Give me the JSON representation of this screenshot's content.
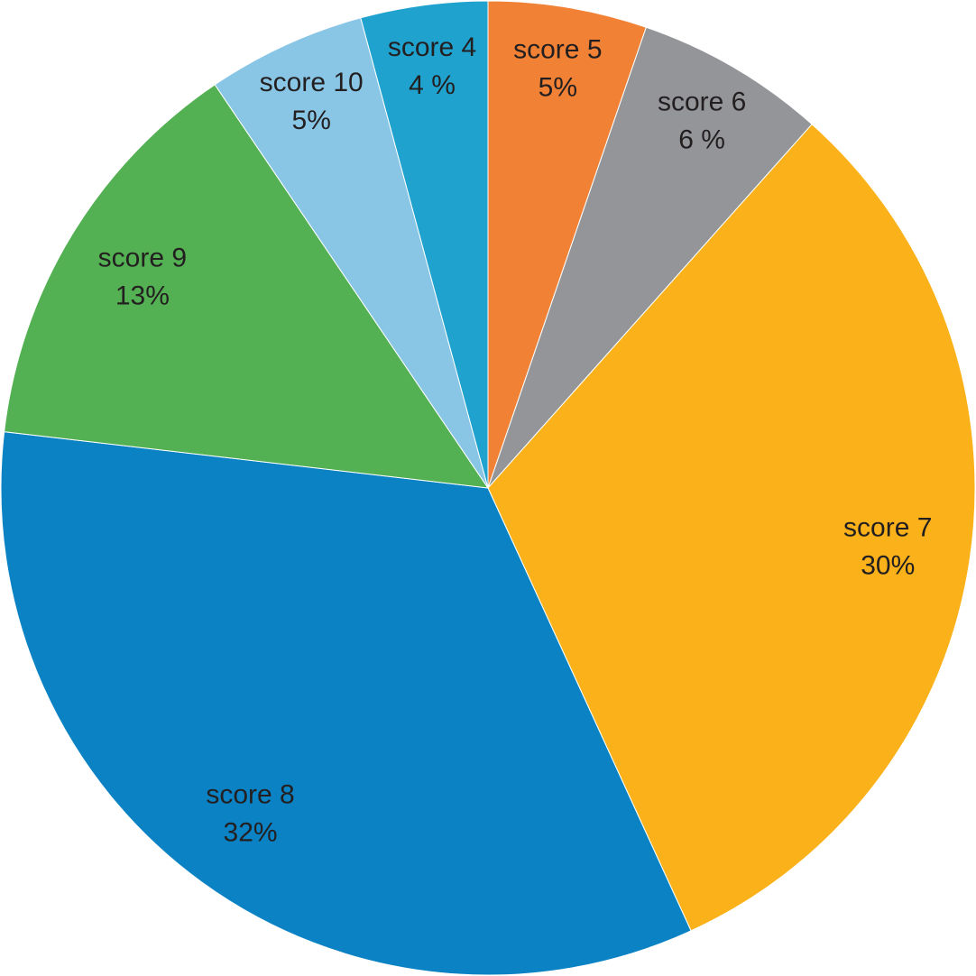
{
  "chart_data": {
    "type": "pie",
    "categories": [
      "score 5",
      "score 6",
      "score 7",
      "score 8",
      "score 9",
      "score 10",
      "score 4"
    ],
    "values": [
      5,
      6,
      30,
      32,
      13,
      5,
      4
    ],
    "value_labels": [
      "5%",
      "6 %",
      "30%",
      "32%",
      "13%",
      "5%",
      "4 %"
    ],
    "colors": [
      "#f08135",
      "#939598",
      "#fbb21a",
      "#0b82c4",
      "#53b153",
      "#89c6e6",
      "#1fa2cd"
    ]
  }
}
